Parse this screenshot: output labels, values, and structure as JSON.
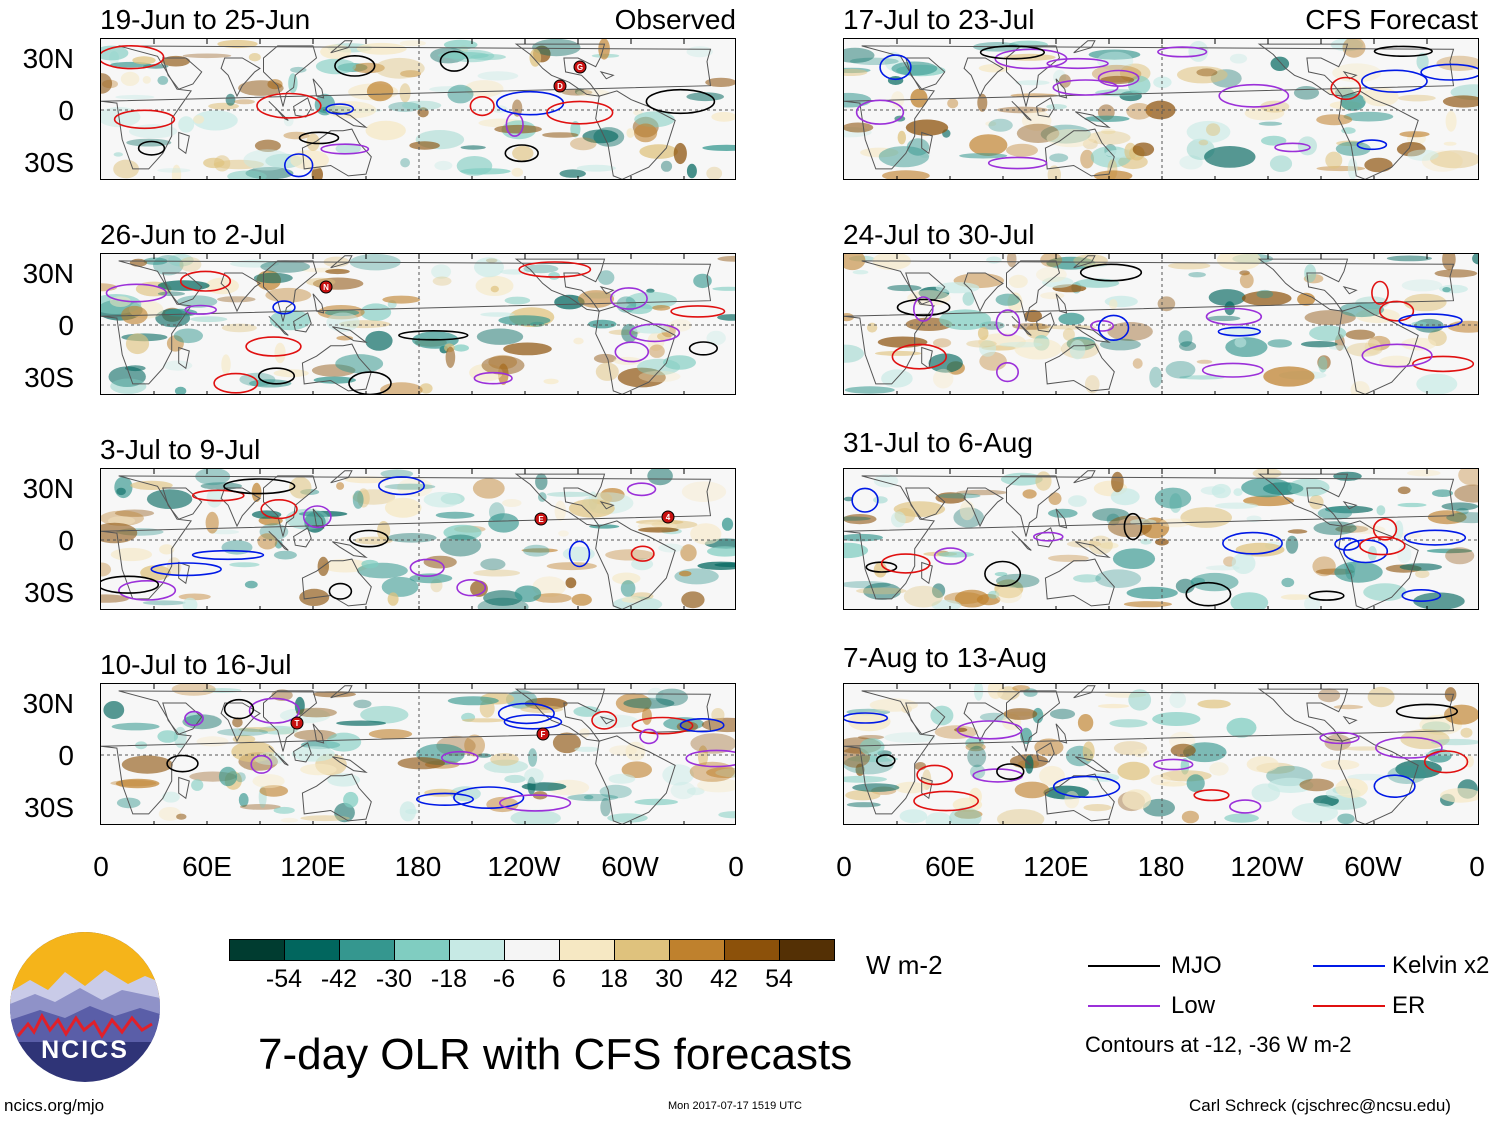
{
  "colors": {
    "mjo": "#000000",
    "kelvin": "#0019e6",
    "low": "#9b30d9",
    "er": "#e01010",
    "land": "#555555",
    "ocean_bg": "#f7f7f7"
  },
  "panels_left": [
    {
      "title": "19-Jun to 25-Jun",
      "tag": "Observed"
    },
    {
      "title": "26-Jun to 2-Jul",
      "tag": ""
    },
    {
      "title": "3-Jul to 9-Jul",
      "tag": ""
    },
    {
      "title": "10-Jul to 16-Jul",
      "tag": ""
    }
  ],
  "panels_right": [
    {
      "title": "17-Jul to 23-Jul",
      "tag": "CFS Forecast"
    },
    {
      "title": "24-Jul to 30-Jul",
      "tag": ""
    },
    {
      "title": "31-Jul to 6-Aug",
      "tag": ""
    },
    {
      "title": "7-Aug to 13-Aug",
      "tag": ""
    }
  ],
  "lat_labels": [
    "30N",
    "0",
    "30S"
  ],
  "lon_labels": [
    "0",
    "60E",
    "120E",
    "180",
    "120W",
    "60W",
    "0"
  ],
  "colorbar": {
    "ticks": [
      "-54",
      "-42",
      "-30",
      "-18",
      "-6",
      "6",
      "18",
      "30",
      "42",
      "54"
    ],
    "colors": [
      "#003c30",
      "#01665e",
      "#35978f",
      "#80cdc1",
      "#c7eae5",
      "#f5f5f5",
      "#f6e8c3",
      "#dfc27d",
      "#bf812d",
      "#8c510a",
      "#543005"
    ],
    "units": "W m-2"
  },
  "title": "7-day OLR with CFS forecasts",
  "legend": {
    "mjo": "MJO",
    "kelvin": "Kelvin x2",
    "low": "Low",
    "er": "ER",
    "note": "Contours at -12, -36 W m-2"
  },
  "logo": {
    "text": "NCICS"
  },
  "footer": {
    "site": "ncics.org/mjo",
    "timestamp": "Mon 2017-07-17 1519 UTC",
    "author": "Carl Schreck (cjschrec@ncsu.edu)"
  },
  "storm_markers": [
    {
      "panel": "left-0",
      "label": "D"
    },
    {
      "panel": "left-0",
      "label": "G"
    },
    {
      "panel": "left-1",
      "label": "N"
    },
    {
      "panel": "left-2",
      "label": "E"
    },
    {
      "panel": "left-2",
      "label": "4"
    },
    {
      "panel": "left-3",
      "label": "T"
    },
    {
      "panel": "left-3",
      "label": "F"
    }
  ]
}
